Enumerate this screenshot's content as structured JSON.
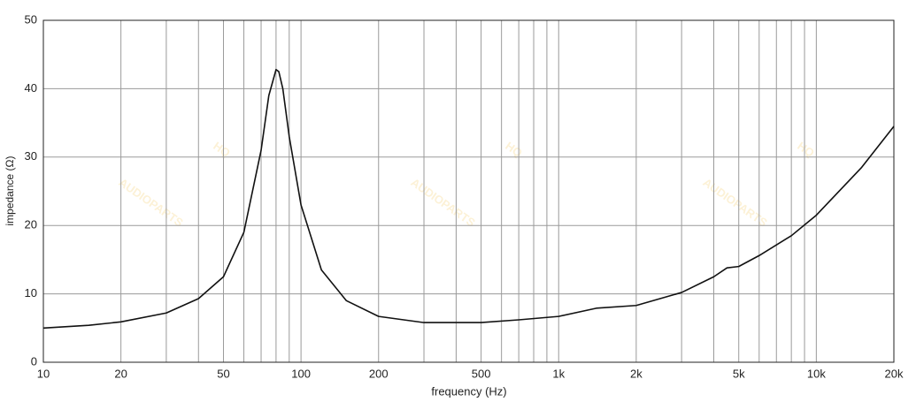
{
  "watermark": {
    "logo": "HQ",
    "text": "AUDIOPARTS"
  },
  "chart_data": {
    "type": "line",
    "x_label": "frequency (Hz)",
    "y_label": "impedance (Ω)",
    "log_x": true,
    "grid": true,
    "x": [
      10,
      15,
      20,
      30,
      40,
      50,
      60,
      70,
      75,
      80,
      82,
      85,
      90,
      100,
      120,
      150,
      200,
      300,
      500,
      700,
      1000,
      1400,
      2000,
      3000,
      4000,
      4500,
      5000,
      6000,
      8000,
      10000,
      15000,
      20000
    ],
    "series": [
      {
        "color": "#111111",
        "values": [
          5.0,
          5.4,
          5.9,
          7.2,
          9.3,
          12.5,
          19,
          31,
          39,
          42.8,
          42.5,
          40,
          33,
          23,
          13.5,
          9,
          6.7,
          5.8,
          5.8,
          6.2,
          6.7,
          7.9,
          8.3,
          10.2,
          12.5,
          13.8,
          14,
          15.6,
          18.5,
          21.5,
          28.5,
          34.5
        ]
      }
    ],
    "xlim": [
      10,
      20000
    ],
    "ylim": [
      0,
      50
    ],
    "xticks": [
      10,
      20,
      50,
      100,
      200,
      500,
      {
        "value": 1000,
        "label": "1k"
      },
      {
        "value": 2000,
        "label": "2k"
      },
      {
        "value": 5000,
        "label": "5k"
      },
      {
        "value": 10000,
        "label": "10k"
      },
      {
        "value": 20000,
        "label": "20k"
      }
    ],
    "xgrid_minor": [
      30,
      40,
      60,
      70,
      80,
      90,
      300,
      400,
      600,
      700,
      800,
      900,
      3000,
      4000,
      6000,
      7000,
      8000,
      9000
    ],
    "yticks": [
      0,
      10,
      20,
      30,
      40,
      50
    ]
  }
}
